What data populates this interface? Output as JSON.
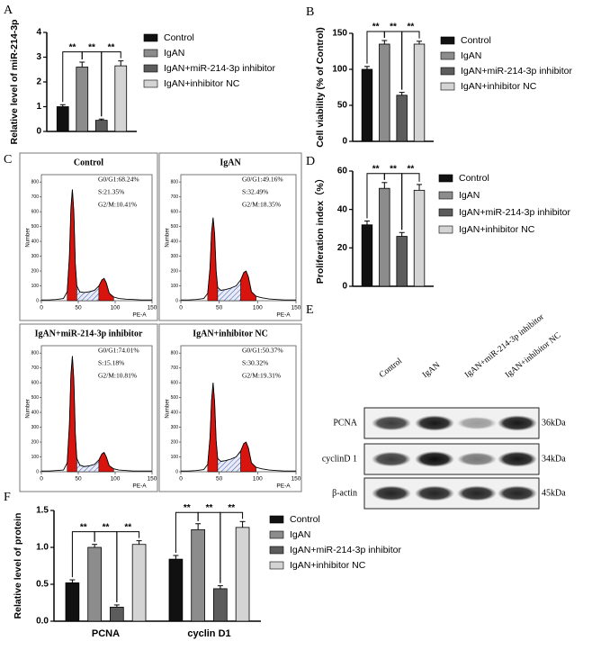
{
  "panel_labels": [
    "A",
    "B",
    "C",
    "D",
    "E",
    "F"
  ],
  "chart_data": [
    {
      "type": "bar",
      "ylabel": "Relative level of miR-214-3p",
      "ylim": [
        0,
        4
      ],
      "yticks": [
        0,
        1,
        2,
        3,
        4
      ],
      "series": [
        {
          "name": "Control",
          "color": "#111111",
          "values": [
            1.0
          ],
          "errors": [
            0.08
          ]
        },
        {
          "name": "IgAN",
          "color": "#8c8c8c",
          "values": [
            2.6
          ],
          "errors": [
            0.2
          ]
        },
        {
          "name": "IgAN+miR-214-3p inhibitor",
          "color": "#5c5c5c",
          "values": [
            0.45
          ],
          "errors": [
            0.05
          ]
        },
        {
          "name": "IgAN+inhibitor NC",
          "color": "#d4d4d4",
          "values": [
            2.65
          ],
          "errors": [
            0.2
          ]
        }
      ],
      "significance": [
        [
          "**",
          "**",
          "**"
        ]
      ]
    },
    {
      "type": "bar",
      "ylabel": "Cell viability (% of Control)",
      "ylim": [
        0,
        150
      ],
      "yticks": [
        0,
        50,
        100,
        150
      ],
      "series": [
        {
          "name": "Control",
          "color": "#111111",
          "values": [
            100
          ],
          "errors": [
            4
          ]
        },
        {
          "name": "IgAN",
          "color": "#8c8c8c",
          "values": [
            135
          ],
          "errors": [
            5
          ]
        },
        {
          "name": "IgAN+miR-214-3p inhibitor",
          "color": "#5c5c5c",
          "values": [
            64
          ],
          "errors": [
            4
          ]
        },
        {
          "name": "IgAN+inhibitor NC",
          "color": "#d4d4d4",
          "values": [
            135
          ],
          "errors": [
            4
          ]
        }
      ],
      "significance": [
        [
          "**",
          "**",
          "**"
        ]
      ]
    },
    {
      "type": "line",
      "title": "Control",
      "xlabel": "PE-A",
      "ylabel": "Number",
      "xlim": [
        0,
        150
      ],
      "ylim": [
        0,
        850
      ],
      "xticks": [
        0,
        50,
        100,
        150
      ],
      "yticks": [
        0,
        100,
        200,
        300,
        400,
        500,
        600,
        700,
        800
      ],
      "x": [
        0,
        10,
        20,
        30,
        35,
        38,
        40,
        42,
        44,
        46,
        48,
        52,
        58,
        65,
        72,
        78,
        82,
        85,
        88,
        92,
        98,
        105,
        115,
        125,
        135,
        150
      ],
      "values": [
        5,
        5,
        8,
        15,
        60,
        300,
        620,
        750,
        600,
        250,
        100,
        60,
        55,
        60,
        70,
        100,
        140,
        150,
        120,
        50,
        25,
        15,
        10,
        8,
        5,
        5
      ],
      "annotations": [
        "G0/G1:68.24%",
        "S:21.35%",
        "G2/M:10.41%"
      ]
    },
    {
      "type": "line",
      "title": "IgAN",
      "xlabel": "PE-A",
      "ylabel": "Number",
      "xlim": [
        0,
        150
      ],
      "ylim": [
        0,
        850
      ],
      "xticks": [
        0,
        50,
        100,
        150
      ],
      "yticks": [
        0,
        100,
        200,
        300,
        400,
        500,
        600,
        700,
        800
      ],
      "x": [
        0,
        10,
        20,
        30,
        35,
        38,
        40,
        42,
        44,
        46,
        48,
        52,
        58,
        65,
        72,
        78,
        82,
        85,
        88,
        92,
        98,
        105,
        115,
        125,
        135,
        150
      ],
      "values": [
        5,
        5,
        8,
        15,
        50,
        220,
        460,
        560,
        450,
        200,
        90,
        70,
        75,
        85,
        100,
        140,
        190,
        200,
        160,
        60,
        30,
        20,
        12,
        8,
        5,
        5
      ],
      "annotations": [
        "G0/G1:49.16%",
        "S:32.49%",
        "G2/M:18.35%"
      ]
    },
    {
      "type": "line",
      "title": "IgAN+miR-214-3p inhibitor",
      "xlabel": "PE-A",
      "ylabel": "Number",
      "xlim": [
        0,
        150
      ],
      "ylim": [
        0,
        850
      ],
      "xticks": [
        0,
        50,
        100,
        150
      ],
      "yticks": [
        0,
        100,
        200,
        300,
        400,
        500,
        600,
        700,
        800
      ],
      "x": [
        0,
        10,
        20,
        30,
        35,
        38,
        40,
        42,
        44,
        46,
        48,
        52,
        58,
        65,
        72,
        78,
        82,
        85,
        88,
        92,
        98,
        105,
        115,
        125,
        135,
        150
      ],
      "values": [
        5,
        5,
        8,
        12,
        60,
        320,
        650,
        780,
        620,
        260,
        90,
        45,
        35,
        40,
        50,
        80,
        120,
        130,
        100,
        40,
        20,
        12,
        8,
        5,
        5,
        5
      ],
      "annotations": [
        "G0/G1:74.01%",
        "S:15.18%",
        "G2/M:10.81%"
      ]
    },
    {
      "type": "line",
      "title": "IgAN+inhibitor NC",
      "xlabel": "PE-A",
      "ylabel": "Number",
      "xlim": [
        0,
        150
      ],
      "ylim": [
        0,
        850
      ],
      "xticks": [
        0,
        50,
        100,
        150
      ],
      "yticks": [
        0,
        100,
        200,
        300,
        400,
        500,
        600,
        700,
        800
      ],
      "x": [
        0,
        10,
        20,
        30,
        35,
        38,
        40,
        42,
        44,
        46,
        48,
        52,
        58,
        65,
        72,
        78,
        82,
        85,
        88,
        92,
        98,
        105,
        115,
        125,
        135,
        150
      ],
      "values": [
        5,
        5,
        8,
        15,
        50,
        230,
        480,
        600,
        470,
        210,
        90,
        70,
        75,
        85,
        100,
        140,
        190,
        200,
        160,
        60,
        30,
        20,
        12,
        8,
        5,
        5
      ],
      "annotations": [
        "G0/G1:50.37%",
        "S:30.32%",
        "G2/M:19.31%"
      ]
    },
    {
      "type": "bar",
      "ylabel": "Proliferation index（%）",
      "ylim": [
        0,
        60
      ],
      "yticks": [
        0,
        20,
        40,
        60
      ],
      "series": [
        {
          "name": "Control",
          "color": "#111111",
          "values": [
            32
          ],
          "errors": [
            2
          ]
        },
        {
          "name": "IgAN",
          "color": "#8c8c8c",
          "values": [
            51
          ],
          "errors": [
            3
          ]
        },
        {
          "name": "IgAN+miR-214-3p inhibitor",
          "color": "#5c5c5c",
          "values": [
            26
          ],
          "errors": [
            2
          ]
        },
        {
          "name": "IgAN+inhibitor NC",
          "color": "#d4d4d4",
          "values": [
            50
          ],
          "errors": [
            3
          ]
        }
      ],
      "significance": [
        [
          "**",
          "**",
          "**"
        ]
      ]
    },
    {
      "type": "bar",
      "ylabel": "Relative level of protein",
      "ylim": [
        0,
        1.5
      ],
      "yticks": [
        {
          "value": 0,
          "label": "0.0"
        },
        0.5,
        {
          "value": 1,
          "label": "1.0"
        },
        1.5
      ],
      "categories": [
        "PCNA",
        "cyclin D1"
      ],
      "series": [
        {
          "name": "Control",
          "color": "#111111",
          "values": [
            0.52,
            0.84
          ],
          "errors": [
            0.04,
            0.05
          ]
        },
        {
          "name": "IgAN",
          "color": "#8c8c8c",
          "values": [
            1.0,
            1.24
          ],
          "errors": [
            0.04,
            0.08
          ]
        },
        {
          "name": "IgAN+miR-214-3p inhibitor",
          "color": "#5c5c5c",
          "values": [
            0.19,
            0.44
          ],
          "errors": [
            0.03,
            0.04
          ]
        },
        {
          "name": "IgAN+inhibitor NC",
          "color": "#d4d4d4",
          "values": [
            1.04,
            1.27
          ],
          "errors": [
            0.05,
            0.08
          ]
        }
      ],
      "significance": [
        [
          "**",
          "**",
          "**"
        ],
        [
          "**",
          "**",
          "**"
        ]
      ]
    }
  ],
  "blot": {
    "columns": [
      "Control",
      "IgAN",
      "IgAN+miR-214-3p inhibitor",
      "IgAN+inhibitor NC"
    ],
    "rows": [
      {
        "label": "PCNA",
        "size": "36kDa"
      },
      {
        "label": "cyclinD 1",
        "size": "34kDa"
      },
      {
        "label": "β-actin",
        "size": "45kDa"
      }
    ]
  }
}
